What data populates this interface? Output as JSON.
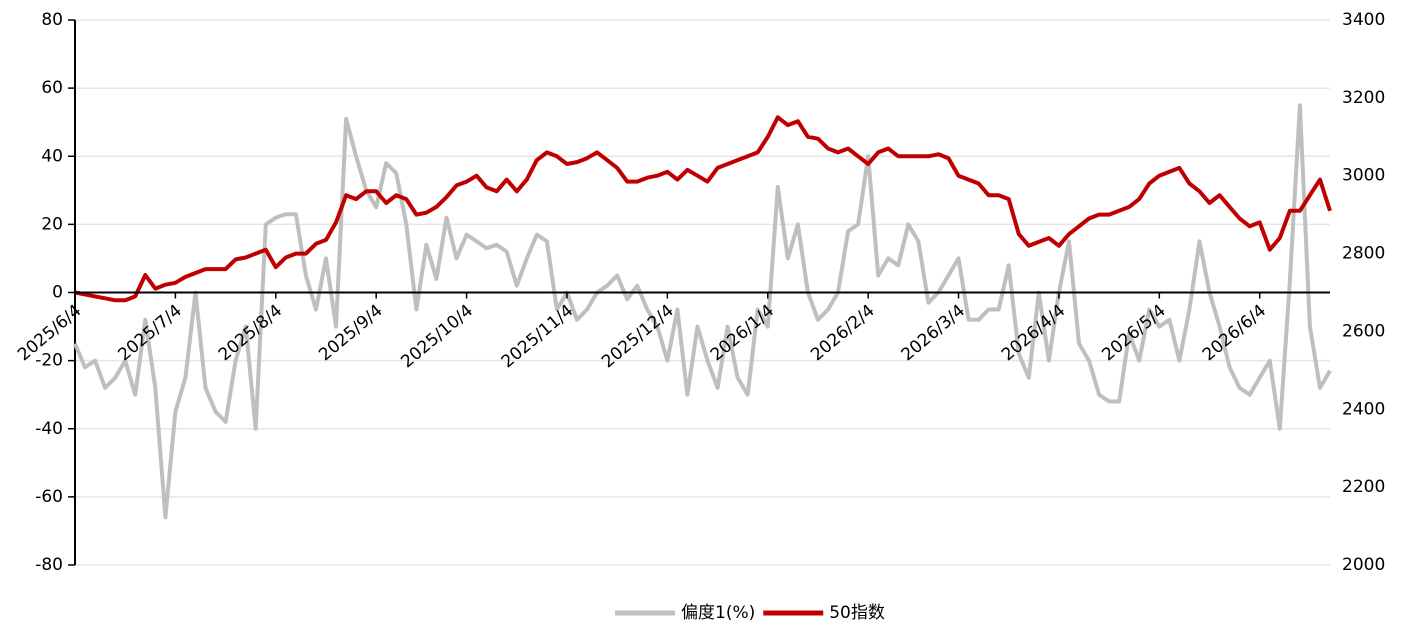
{
  "chart_data": {
    "type": "line",
    "categories": [
      "2025/6/4",
      null,
      null,
      null,
      null,
      null,
      null,
      null,
      null,
      null,
      "2025/7/4",
      null,
      null,
      null,
      null,
      null,
      null,
      null,
      null,
      null,
      "2025/8/4",
      null,
      null,
      null,
      null,
      null,
      null,
      null,
      null,
      null,
      "2025/9/4",
      null,
      null,
      null,
      null,
      null,
      null,
      null,
      null,
      "2025/10/4",
      null,
      null,
      null,
      null,
      null,
      null,
      null,
      null,
      null,
      "2025/11/4",
      null,
      null,
      null,
      null,
      null,
      null,
      null,
      null,
      null,
      "2025/12/4",
      null,
      null,
      null,
      null,
      null,
      null,
      null,
      null,
      null,
      "2026/1/4",
      null,
      null,
      null,
      null,
      null,
      null,
      null,
      null,
      null,
      "2026/2/4",
      null,
      null,
      null,
      null,
      null,
      null,
      null,
      null,
      "2026/3/4",
      null,
      null,
      null,
      null,
      null,
      null,
      null,
      null,
      null,
      "2026/4/4",
      null,
      null,
      null,
      null,
      null,
      null,
      null,
      null,
      null,
      "2026/5/4",
      null,
      null,
      null,
      null,
      null,
      null,
      null,
      null,
      null,
      "2026/6/4",
      null,
      null,
      null,
      null,
      null,
      null,
      null
    ],
    "series": [
      {
        "name": "偏度1(%)",
        "color": "#bfbfbf",
        "axis": "y",
        "values": [
          -15,
          -22,
          -20,
          -28,
          -25,
          -20,
          -30,
          -8,
          -28,
          -66,
          -35,
          -25,
          0,
          -28,
          -35,
          -38,
          -20,
          -10,
          -40,
          20,
          22,
          23,
          23,
          5,
          -5,
          10,
          -10,
          51,
          40,
          30,
          25,
          38,
          35,
          20,
          -5,
          14,
          4,
          22,
          10,
          17,
          15,
          13,
          14,
          12,
          2,
          10,
          17,
          15,
          -5,
          0,
          -8,
          -5,
          0,
          2,
          5,
          -2,
          2,
          -5,
          -10,
          -20,
          -5,
          -30,
          -10,
          -20,
          -28,
          -10,
          -25,
          -30,
          -5,
          -10,
          31,
          10,
          20,
          0,
          -8,
          -5,
          0,
          18,
          20,
          40,
          5,
          10,
          8,
          20,
          15,
          -3,
          0,
          5,
          10,
          -8,
          -8,
          -5,
          -5,
          8,
          -18,
          -25,
          0,
          -20,
          0,
          15,
          -15,
          -20,
          -30,
          -32,
          -32,
          -12,
          -20,
          -5,
          -10,
          -8,
          -20,
          -5,
          15,
          0,
          -10,
          -22,
          -28,
          -30,
          -25,
          -20,
          -40,
          3,
          55,
          -10,
          -28,
          -23
        ]
      },
      {
        "name": "50指数",
        "color": "#c00000",
        "axis": "y2",
        "values": [
          2700,
          2695,
          2690,
          2685,
          2680,
          2680,
          2690,
          2745,
          2710,
          2720,
          2725,
          2740,
          2750,
          2760,
          2760,
          2760,
          2785,
          2790,
          2800,
          2810,
          2765,
          2790,
          2800,
          2800,
          2825,
          2835,
          2880,
          2950,
          2940,
          2960,
          2960,
          2930,
          2950,
          2940,
          2900,
          2905,
          2920,
          2945,
          2975,
          2985,
          3000,
          2970,
          2960,
          2990,
          2960,
          2990,
          3040,
          3060,
          3050,
          3030,
          3035,
          3045,
          3060,
          3040,
          3020,
          2985,
          2985,
          2995,
          3000,
          3010,
          2990,
          3015,
          3000,
          2985,
          3020,
          3030,
          3040,
          3050,
          3060,
          3100,
          3150,
          3130,
          3140,
          3100,
          3095,
          3070,
          3060,
          3070,
          3050,
          3030,
          3060,
          3070,
          3050,
          3050,
          3050,
          3050,
          3055,
          3045,
          3000,
          2990,
          2980,
          2950,
          2950,
          2940,
          2850,
          2820,
          2830,
          2840,
          2820,
          2850,
          2870,
          2890,
          2900,
          2900,
          2910,
          2920,
          2940,
          2980,
          3000,
          3010,
          3020,
          2980,
          2960,
          2930,
          2950,
          2920,
          2890,
          2870,
          2880,
          2810,
          2840,
          2910,
          2910,
          2950,
          2990,
          2910
        ]
      }
    ],
    "ylim": [
      -80,
      80
    ],
    "yticks": [
      -80,
      -60,
      -40,
      -20,
      0,
      20,
      40,
      60,
      80
    ],
    "y2lim": [
      2000,
      3400
    ],
    "y2ticks": [
      2000,
      2200,
      2400,
      2600,
      2800,
      3000,
      3200,
      3400
    ],
    "grid": true
  }
}
